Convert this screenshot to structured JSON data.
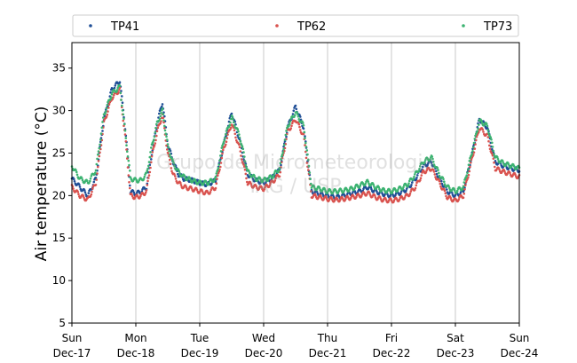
{
  "chart_data": {
    "type": "scatter",
    "ylabel": "Air temperature (°C)",
    "ylim": [
      5,
      38
    ],
    "yticks": [
      5,
      10,
      15,
      20,
      25,
      30,
      35
    ],
    "xlim": [
      "2017-12-17 00:00",
      "2017-12-24 00:00"
    ],
    "xticks": [
      {
        "day": "Sun",
        "date": "Dec-17"
      },
      {
        "day": "Mon",
        "date": "Dec-18"
      },
      {
        "day": "Tue",
        "date": "Dec-19"
      },
      {
        "day": "Wed",
        "date": "Dec-20"
      },
      {
        "day": "Thu",
        "date": "Dec-21"
      },
      {
        "day": "Fri",
        "date": "Dec-22"
      },
      {
        "day": "Sat",
        "date": "Dec-23"
      },
      {
        "day": "Sun",
        "date": "Dec-24"
      }
    ],
    "grid": "vertical",
    "legend": {
      "placement": "top",
      "entries": [
        "TP41",
        "TP62",
        "TP73"
      ]
    },
    "watermark": [
      "Grupo de Micrometeorologia",
      "IAG / USP"
    ],
    "colors": {
      "TP41": "#1f4e96",
      "TP62": "#d9534f",
      "TP73": "#3cb371"
    },
    "x_hours": [
      0,
      3,
      6,
      9,
      12,
      15,
      18,
      20,
      22,
      24,
      26,
      28,
      30,
      32,
      34,
      36,
      38,
      40,
      42,
      45,
      48,
      51,
      54,
      57,
      60,
      63,
      66,
      69,
      72,
      75,
      78,
      81,
      84,
      87,
      90,
      93,
      96,
      99,
      102,
      105,
      108,
      111,
      114,
      117,
      120,
      123,
      126,
      129,
      132,
      135,
      138,
      141,
      144,
      147,
      150,
      153,
      156,
      159,
      162,
      165,
      168
    ],
    "series": [
      {
        "name": "TP41",
        "values": [
          22.0,
          21.0,
          20.0,
          22.0,
          29.0,
          32.5,
          33.5,
          28.0,
          20.5,
          20.2,
          20.5,
          21.0,
          25.0,
          28.5,
          31.0,
          26.0,
          24.0,
          22.5,
          22.0,
          21.8,
          21.5,
          21.3,
          21.8,
          26.0,
          29.8,
          26.5,
          22.5,
          21.8,
          21.5,
          22.0,
          23.0,
          28.0,
          30.5,
          28.0,
          20.5,
          20.2,
          20.0,
          19.8,
          20.0,
          20.3,
          20.5,
          21.0,
          20.5,
          20.2,
          20.0,
          20.3,
          20.8,
          22.0,
          23.5,
          24.0,
          22.0,
          20.5,
          20.0,
          20.5,
          24.5,
          29.0,
          28.0,
          24.0,
          23.5,
          23.2,
          23.0
        ]
      },
      {
        "name": "TP62",
        "values": [
          21.0,
          20.0,
          19.5,
          21.5,
          28.5,
          31.5,
          32.5,
          27.0,
          20.0,
          19.8,
          20.0,
          20.5,
          24.5,
          27.5,
          29.5,
          25.0,
          22.5,
          21.5,
          21.0,
          20.8,
          20.5,
          20.3,
          21.0,
          25.5,
          28.5,
          25.5,
          21.5,
          21.0,
          20.8,
          21.5,
          22.5,
          27.5,
          29.0,
          27.0,
          20.0,
          19.8,
          19.6,
          19.5,
          19.6,
          19.8,
          20.0,
          20.3,
          19.8,
          19.5,
          19.4,
          19.6,
          20.0,
          21.0,
          22.8,
          23.2,
          21.5,
          19.8,
          19.4,
          20.0,
          24.0,
          28.0,
          27.0,
          23.2,
          22.8,
          22.5,
          22.2
        ]
      },
      {
        "name": "TP73",
        "values": [
          23.5,
          22.0,
          21.5,
          23.0,
          29.5,
          32.0,
          32.8,
          27.5,
          22.0,
          21.8,
          21.8,
          22.5,
          25.8,
          28.5,
          30.0,
          25.8,
          23.8,
          22.8,
          22.2,
          21.8,
          21.5,
          21.5,
          22.0,
          26.5,
          29.2,
          27.0,
          22.8,
          22.0,
          21.8,
          22.2,
          23.2,
          28.2,
          29.8,
          28.2,
          21.0,
          20.8,
          20.5,
          20.5,
          20.6,
          20.8,
          21.2,
          21.6,
          21.0,
          20.6,
          20.5,
          20.8,
          21.3,
          22.5,
          24.0,
          24.5,
          22.5,
          21.0,
          20.5,
          21.0,
          24.8,
          28.8,
          28.2,
          24.5,
          23.8,
          23.5,
          23.2
        ]
      }
    ]
  }
}
